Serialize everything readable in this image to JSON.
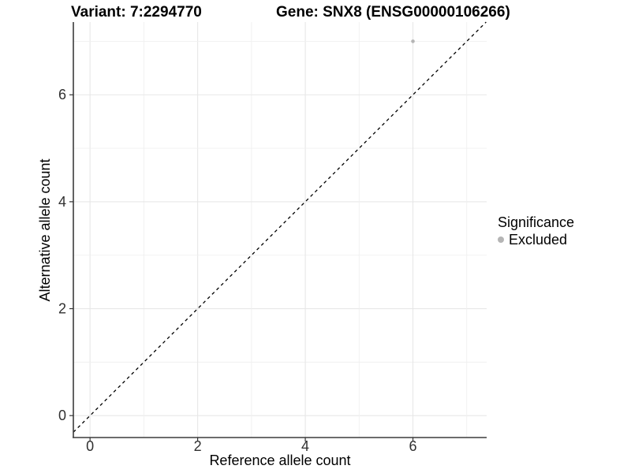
{
  "titles": {
    "variant": "Variant: 7:2294770",
    "gene": "Gene: SNX8 (ENSG00000106266)"
  },
  "chart_data": {
    "type": "scatter",
    "xlabel": "Reference allele count",
    "ylabel": "Alternative allele count",
    "x_ticks": [
      0,
      2,
      4,
      6
    ],
    "y_ticks": [
      0,
      2,
      4,
      6
    ],
    "grid_values": [
      0,
      1,
      2,
      3,
      4,
      5,
      6,
      7
    ],
    "xlim": [
      -0.31,
      7.37
    ],
    "ylim": [
      -0.41,
      7.36
    ],
    "grid": true,
    "points": [
      {
        "x": 6,
        "y": 7,
        "series": "Excluded"
      }
    ],
    "series": [
      {
        "name": "Excluded",
        "color": "#b5b5b5"
      }
    ],
    "identity_line": {
      "equation": "y = x",
      "style": "dashed",
      "color": "#000000"
    },
    "legend": {
      "title": "Significance",
      "position": "right",
      "items": [
        {
          "label": "Excluded",
          "color": "#b5b5b5"
        }
      ]
    }
  },
  "colors": {
    "background": "#ffffff",
    "grid_major": "#e7e7e7",
    "grid_minor": "#f0f0f0",
    "axis_line": "#3c3c3c",
    "tick_mark": "#333333",
    "point": "#b5b5b5"
  }
}
